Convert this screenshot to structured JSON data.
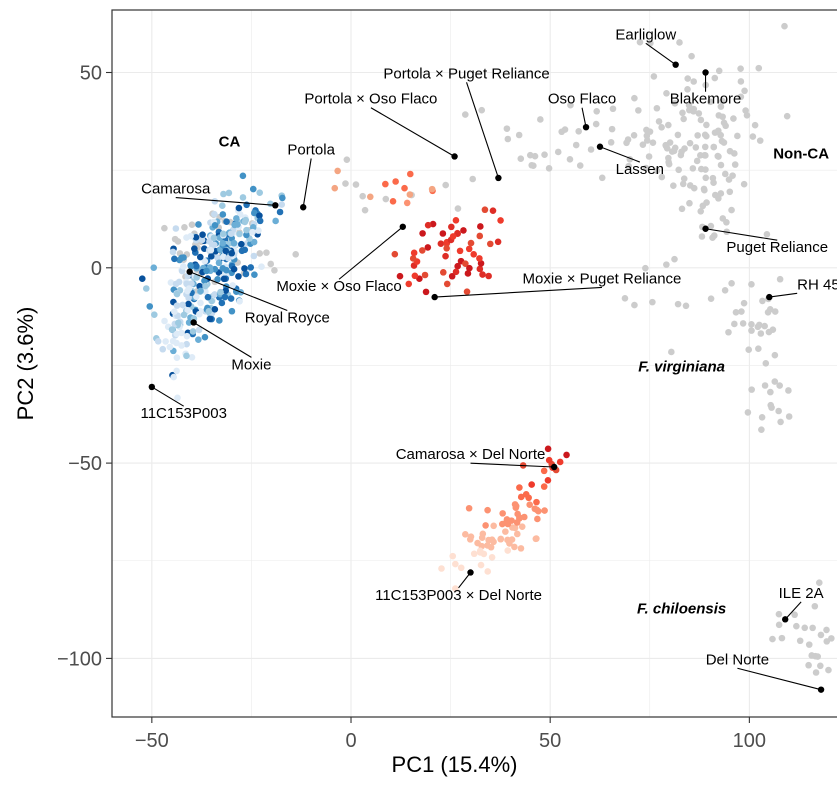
{
  "chart_data": {
    "type": "scatter",
    "xlabel": "PC1 (15.4%)",
    "ylabel": "PC2 (3.6%)",
    "xlim": [
      -60,
      122
    ],
    "ylim": [
      -115,
      66
    ],
    "xticks": [
      -50,
      0,
      50,
      100
    ],
    "yticks": [
      -100,
      -50,
      0,
      50
    ],
    "xtick_labels": [
      "−50",
      "0",
      "50",
      "100"
    ],
    "ytick_labels": [
      "−100",
      "−50",
      "0",
      "50"
    ],
    "grid": true,
    "colors": {
      "background": "#ffffff",
      "grid": "#ebebeb",
      "other_germplasm": "#cccccc",
      "CA_blue_light": "#c6dbef",
      "CA_blue_dark": "#2171b5",
      "hybrid_light": "#fcd1bd",
      "hybrid_dark": "#cb181d",
      "highlight": "#000000"
    },
    "group_labels": [
      {
        "text": "CA",
        "x": -30.5,
        "y": 31,
        "style": "bold"
      },
      {
        "text": "Non-CA",
        "x": 113,
        "y": 28,
        "style": "bold"
      },
      {
        "text": "F. virginiana",
        "x": 83,
        "y": -26.5,
        "style": "bold-italic"
      },
      {
        "text": "F. chiloensis",
        "x": 83,
        "y": -88.5,
        "style": "bold-italic"
      }
    ],
    "highlighted_points": [
      {
        "name": "Earliglow",
        "x": 81.5,
        "y": 52,
        "label_x": 74,
        "label_y": 58.5,
        "anchor": "middle",
        "leader": true
      },
      {
        "name": "Blakemore",
        "x": 89,
        "y": 50,
        "label_x": 89,
        "label_y": 42,
        "anchor": "middle",
        "leader": true
      },
      {
        "name": "Oso Flaco",
        "x": 59,
        "y": 36,
        "label_x": 58,
        "label_y": 42,
        "anchor": "middle",
        "leader": true
      },
      {
        "name": "Lassen",
        "x": 62.5,
        "y": 31,
        "label_x": 72.5,
        "label_y": 24,
        "anchor": "middle",
        "leader": true
      },
      {
        "name": "Puget Reliance",
        "x": 89,
        "y": 10,
        "label_x": 107,
        "label_y": 4,
        "anchor": "middle",
        "leader": true
      },
      {
        "name": "RH 45",
        "x": 105,
        "y": -7.5,
        "label_x": 112,
        "label_y": -5.5,
        "anchor": "start",
        "leader": true
      },
      {
        "name": "Portola × Puget Reliance",
        "x": 37,
        "y": 23,
        "label_x": 29,
        "label_y": 48.5,
        "anchor": "middle",
        "leader": true
      },
      {
        "name": "Portola × Oso Flaco",
        "x": 26,
        "y": 28.5,
        "label_x": 5,
        "label_y": 42,
        "anchor": "middle",
        "leader": true
      },
      {
        "name": "Portola",
        "x": -12,
        "y": 15.5,
        "label_x": -10,
        "label_y": 29,
        "anchor": "middle",
        "leader": true
      },
      {
        "name": "Camarosa",
        "x": -19,
        "y": 16,
        "label_x": -44,
        "label_y": 19,
        "anchor": "middle",
        "leader": true
      },
      {
        "name": "Moxie × Oso Flaco",
        "x": 13,
        "y": 10.5,
        "label_x": -3,
        "label_y": -6,
        "anchor": "middle",
        "leader": true
      },
      {
        "name": "Moxie × Puget Reliance",
        "x": 21,
        "y": -7.5,
        "label_x": 63,
        "label_y": -4,
        "anchor": "middle",
        "leader": true
      },
      {
        "name": "Royal Royce",
        "x": -40.5,
        "y": -1,
        "label_x": -16,
        "label_y": -14,
        "anchor": "middle",
        "leader": true
      },
      {
        "name": "Moxie",
        "x": -39.5,
        "y": -14,
        "label_x": -25,
        "label_y": -26,
        "anchor": "middle",
        "leader": true
      },
      {
        "name": "11C153P003",
        "x": -50,
        "y": -30.5,
        "label_x": -42,
        "label_y": -38.5,
        "anchor": "middle",
        "leader": true
      },
      {
        "name": "Camarosa × Del Norte",
        "x": 51,
        "y": -51,
        "label_x": 30,
        "label_y": -49,
        "anchor": "middle",
        "leader": true
      },
      {
        "name": "11C153P003 × Del Norte",
        "x": 30,
        "y": -78,
        "label_x": 27,
        "label_y": -85,
        "anchor": "middle",
        "leader": true
      },
      {
        "name": "ILE 2A",
        "x": 109,
        "y": -90,
        "label_x": 113,
        "label_y": -84.5,
        "anchor": "middle",
        "leader": true
      },
      {
        "name": "Del Norte",
        "x": 118,
        "y": -108,
        "label_x": 97,
        "label_y": -101.5,
        "anchor": "middle",
        "leader": true
      }
    ],
    "point_clusters": [
      {
        "group": "other",
        "color": "#cccccc",
        "n": 70,
        "cx": 88,
        "cy": 40,
        "sx": 9,
        "sy": 11,
        "seed": 11
      },
      {
        "group": "other",
        "color": "#cccccc",
        "n": 55,
        "cx": 90,
        "cy": 22,
        "sx": 6,
        "sy": 9,
        "seed": 12
      },
      {
        "group": "other",
        "color": "#cccccc",
        "n": 25,
        "cx": 70,
        "cy": 33,
        "sx": 10,
        "sy": 5,
        "seed": 13
      },
      {
        "group": "other",
        "color": "#cccccc",
        "n": 18,
        "cx": 52,
        "cy": 33,
        "sx": 8,
        "sy": 5,
        "seed": 14
      },
      {
        "group": "other",
        "color": "#cccccc",
        "n": 30,
        "cx": 103,
        "cy": -12,
        "sx": 4,
        "sy": 8,
        "seed": 15
      },
      {
        "group": "other",
        "color": "#cccccc",
        "n": 12,
        "cx": 106,
        "cy": -35,
        "sx": 3,
        "sy": 4,
        "seed": 16
      },
      {
        "group": "other",
        "color": "#cccccc",
        "n": 14,
        "cx": 113,
        "cy": -90,
        "sx": 4,
        "sy": 6,
        "seed": 17
      },
      {
        "group": "other",
        "color": "#cccccc",
        "n": 10,
        "cx": 117,
        "cy": -100,
        "sx": 2,
        "sy": 3,
        "seed": 18
      },
      {
        "group": "other",
        "color": "#cccccc",
        "n": 45,
        "cx": -33,
        "cy": 6,
        "sx": 7,
        "sy": 5,
        "seed": 19
      },
      {
        "group": "other",
        "color": "#cccccc",
        "n": 10,
        "cx": 10,
        "cy": 20,
        "sx": 12,
        "sy": 5,
        "seed": 20
      },
      {
        "group": "other",
        "color": "#cccccc",
        "n": 8,
        "cx": 77,
        "cy": -8,
        "sx": 5,
        "sy": 8,
        "seed": 21
      },
      {
        "group": "CA",
        "color": "blue-gradient",
        "n": 220,
        "cx": -35,
        "cy": 0,
        "sx": 6,
        "sy": 8,
        "seed": 31
      },
      {
        "group": "CA",
        "color": "blue-gradient",
        "n": 50,
        "cx": -27,
        "cy": 10,
        "sx": 5,
        "sy": 3,
        "seed": 32
      },
      {
        "group": "CA",
        "color": "blue-light",
        "n": 45,
        "cx": -43,
        "cy": -15,
        "sx": 3,
        "sy": 6,
        "seed": 33
      },
      {
        "group": "hybrid",
        "color": "red-dark",
        "n": 55,
        "cx": 25,
        "cy": 5,
        "sx": 6,
        "sy": 6,
        "seed": 41
      },
      {
        "group": "hybrid",
        "color": "red-medium",
        "n": 12,
        "cx": 12,
        "cy": 19,
        "sx": 6,
        "sy": 4,
        "seed": 42
      },
      {
        "group": "hybrid",
        "color": "red-light-gradient",
        "n": 70,
        "cx": 38,
        "cy": -66,
        "sx": 5,
        "sy": 6,
        "seed": 43
      },
      {
        "group": "hybrid",
        "color": "red-dark",
        "n": 10,
        "cx": 51,
        "cy": -50,
        "sx": 3,
        "sy": 3,
        "seed": 44
      }
    ]
  }
}
